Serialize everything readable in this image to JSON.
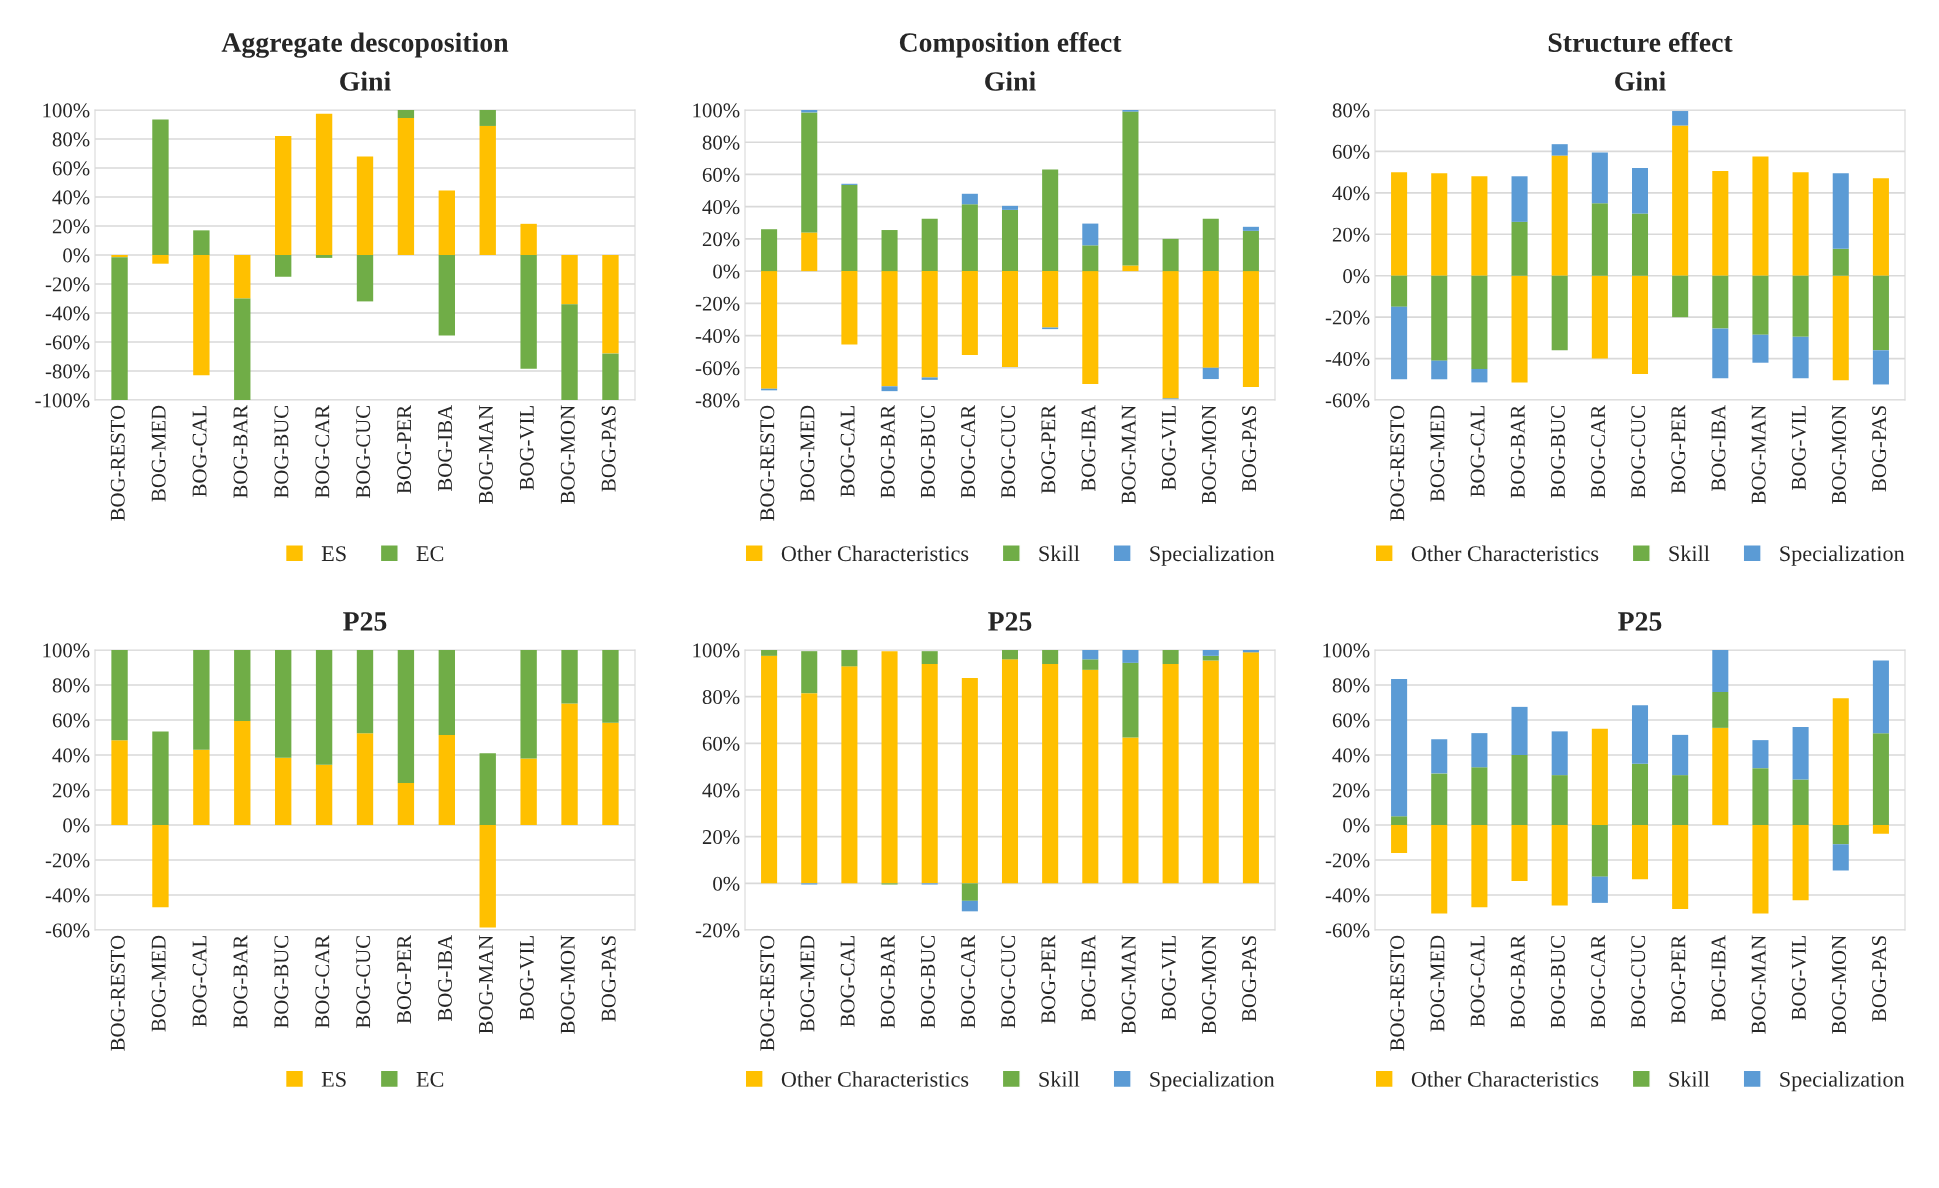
{
  "chart_data": [
    {
      "type": "bar",
      "title": "Aggregate descoposition",
      "subtitle": "Gini",
      "stacked": true,
      "grid": "y",
      "legend": "bottom",
      "categories": [
        "BOG-RESTO",
        "BOG-MED",
        "BOG-CAL",
        "BOG-BAR",
        "BOG-BUC",
        "BOG-CAR",
        "BOG-CUC",
        "BOG-PER",
        "BOG-IBA",
        "BOG-MAN",
        "BOG-VIL",
        "BOG-MON",
        "BOG-PAS"
      ],
      "ylim": [
        -100,
        100
      ],
      "yticks": [
        {
          "value": -100,
          "label": "-100%"
        },
        {
          "value": -80,
          "label": "-80%"
        },
        {
          "value": -60,
          "label": "-60%"
        },
        {
          "value": -40,
          "label": "-40%"
        },
        {
          "value": -20,
          "label": "-20%"
        },
        {
          "value": 0,
          "label": "0%"
        },
        {
          "value": 20,
          "label": "20%"
        },
        {
          "value": 40,
          "label": "40%"
        },
        {
          "value": 60,
          "label": "60%"
        },
        {
          "value": 80,
          "label": "80%"
        },
        {
          "value": 100,
          "label": "100%"
        }
      ],
      "series": [
        {
          "name": "ES",
          "color": "#ffc000",
          "values": [
            -1.5,
            -6,
            -83,
            -30,
            82,
            97.5,
            68,
            94.5,
            44.5,
            89,
            21.5,
            -34,
            -68
          ]
        },
        {
          "name": "EC",
          "color": "#70ad47",
          "values": [
            -98.5,
            93.5,
            17,
            -70,
            -15,
            -2,
            -32,
            5.5,
            -55.5,
            11,
            -78.5,
            -66,
            -32
          ]
        }
      ]
    },
    {
      "type": "bar",
      "title": "Composition effect",
      "subtitle": "Gini",
      "stacked": true,
      "grid": "y",
      "legend": "bottom",
      "categories": [
        "BOG-RESTO",
        "BOG-MED",
        "BOG-CAL",
        "BOG-BAR",
        "BOG-BUC",
        "BOG-CAR",
        "BOG-CUC",
        "BOG-PER",
        "BOG-IBA",
        "BOG-MAN",
        "BOG-VIL",
        "BOG-MON",
        "BOG-PAS"
      ],
      "ylim": [
        -80,
        100
      ],
      "yticks": [
        {
          "value": -80,
          "label": "-80%"
        },
        {
          "value": -60,
          "label": "-60%"
        },
        {
          "value": -40,
          "label": "-40%"
        },
        {
          "value": -20,
          "label": "-20%"
        },
        {
          "value": 0,
          "label": "0%"
        },
        {
          "value": 20,
          "label": "20%"
        },
        {
          "value": 40,
          "label": "40%"
        },
        {
          "value": 60,
          "label": "60%"
        },
        {
          "value": 80,
          "label": "80%"
        },
        {
          "value": 100,
          "label": "100%"
        }
      ],
      "series": [
        {
          "name": "Other Characteristics",
          "color": "#ffc000",
          "values": [
            -73,
            24,
            -45.5,
            -71.5,
            -66,
            -52,
            -59.5,
            -35,
            -70,
            3.5,
            -79,
            -60,
            -72
          ]
        },
        {
          "name": "Skill",
          "color": "#70ad47",
          "values": [
            26,
            74.5,
            53.5,
            25.5,
            32.5,
            41.5,
            38,
            63,
            16,
            95.5,
            20,
            32.5,
            25
          ]
        },
        {
          "name": "Specialization",
          "color": "#5b9bd5",
          "values": [
            -1,
            1.5,
            0.7,
            -3,
            -1.5,
            6.5,
            2.5,
            -1,
            13.5,
            1,
            -0.5,
            -7,
            2.5
          ]
        }
      ]
    },
    {
      "type": "bar",
      "title": "Structure effect",
      "subtitle": "Gini",
      "stacked": true,
      "grid": "y",
      "legend": "bottom",
      "categories": [
        "BOG-RESTO",
        "BOG-MED",
        "BOG-CAL",
        "BOG-BAR",
        "BOG-BUC",
        "BOG-CAR",
        "BOG-CUC",
        "BOG-PER",
        "BOG-IBA",
        "BOG-MAN",
        "BOG-VIL",
        "BOG-MON",
        "BOG-PAS"
      ],
      "ylim": [
        -60,
        80
      ],
      "yticks": [
        {
          "value": -60,
          "label": "-60%"
        },
        {
          "value": -40,
          "label": "-40%"
        },
        {
          "value": -20,
          "label": "-20%"
        },
        {
          "value": 0,
          "label": "0%"
        },
        {
          "value": 20,
          "label": "20%"
        },
        {
          "value": 40,
          "label": "40%"
        },
        {
          "value": 60,
          "label": "60%"
        },
        {
          "value": 80,
          "label": "80%"
        }
      ],
      "series": [
        {
          "name": "Other Characteristics",
          "color": "#ffc000",
          "values": [
            50,
            49.5,
            48,
            -51.5,
            58,
            -40,
            -47.5,
            72.5,
            50.5,
            57.5,
            50,
            -50.5,
            47
          ]
        },
        {
          "name": "Skill",
          "color": "#70ad47",
          "values": [
            -15,
            -41,
            -45,
            26,
            -36,
            35,
            30,
            -20,
            -25.5,
            -28.5,
            -29.5,
            13,
            -36
          ]
        },
        {
          "name": "Specialization",
          "color": "#5b9bd5",
          "values": [
            -35,
            -9,
            -6.5,
            22,
            5.5,
            24.5,
            22,
            7,
            -24,
            -13.5,
            -20,
            36.5,
            -16.5
          ]
        }
      ]
    },
    {
      "type": "bar",
      "title": "P25",
      "stacked": true,
      "grid": "y",
      "legend": "bottom",
      "categories": [
        "BOG-RESTO",
        "BOG-MED",
        "BOG-CAL",
        "BOG-BAR",
        "BOG-BUC",
        "BOG-CAR",
        "BOG-CUC",
        "BOG-PER",
        "BOG-IBA",
        "BOG-MAN",
        "BOG-VIL",
        "BOG-MON",
        "BOG-PAS"
      ],
      "ylim": [
        -60,
        100
      ],
      "yticks": [
        {
          "value": -60,
          "label": "-60%"
        },
        {
          "value": -40,
          "label": "-40%"
        },
        {
          "value": -20,
          "label": "-20%"
        },
        {
          "value": 0,
          "label": "0%"
        },
        {
          "value": 20,
          "label": "20%"
        },
        {
          "value": 40,
          "label": "40%"
        },
        {
          "value": 60,
          "label": "60%"
        },
        {
          "value": 80,
          "label": "80%"
        },
        {
          "value": 100,
          "label": "100%"
        }
      ],
      "series": [
        {
          "name": "ES",
          "color": "#ffc000",
          "values": [
            48.5,
            -47,
            43,
            59.5,
            38.5,
            34.5,
            52.5,
            24,
            51.5,
            -58.5,
            38,
            69.5,
            58.5
          ]
        },
        {
          "name": "EC",
          "color": "#70ad47",
          "values": [
            51.5,
            53.5,
            57,
            40.5,
            61.5,
            65.5,
            47.5,
            76,
            48.5,
            41,
            62,
            30.5,
            41.5
          ]
        }
      ]
    },
    {
      "type": "bar",
      "title": "P25",
      "stacked": true,
      "grid": "y",
      "legend": "bottom",
      "categories": [
        "BOG-RESTO",
        "BOG-MED",
        "BOG-CAL",
        "BOG-BAR",
        "BOG-BUC",
        "BOG-CAR",
        "BOG-CUC",
        "BOG-PER",
        "BOG-IBA",
        "BOG-MAN",
        "BOG-VIL",
        "BOG-MON",
        "BOG-PAS"
      ],
      "ylim": [
        -20,
        100
      ],
      "yticks": [
        {
          "value": -20,
          "label": "-20%"
        },
        {
          "value": 0,
          "label": "0%"
        },
        {
          "value": 20,
          "label": "20%"
        },
        {
          "value": 40,
          "label": "40%"
        },
        {
          "value": 60,
          "label": "60%"
        },
        {
          "value": 80,
          "label": "80%"
        },
        {
          "value": 100,
          "label": "100%"
        }
      ],
      "series": [
        {
          "name": "Other Characteristics",
          "color": "#ffc000",
          "values": [
            97.5,
            81.5,
            93,
            99.5,
            94,
            88,
            96,
            94,
            91.5,
            62.5,
            94,
            95.5,
            99
          ]
        },
        {
          "name": "Skill",
          "color": "#70ad47",
          "values": [
            2.5,
            18,
            7,
            -0.5,
            5.5,
            -7.5,
            4,
            6,
            4.5,
            32,
            6,
            2,
            null
          ]
        },
        {
          "name": "Specialization",
          "color": "#5b9bd5",
          "values": [
            null,
            -0.5,
            null,
            null,
            -0.5,
            -4.5,
            null,
            null,
            4,
            5.5,
            null,
            2.5,
            1
          ]
        }
      ]
    },
    {
      "type": "bar",
      "title": "P25",
      "stacked": true,
      "grid": "y",
      "legend": "bottom",
      "categories": [
        "BOG-RESTO",
        "BOG-MED",
        "BOG-CAL",
        "BOG-BAR",
        "BOG-BUC",
        "BOG-CAR",
        "BOG-CUC",
        "BOG-PER",
        "BOG-IBA",
        "BOG-MAN",
        "BOG-VIL",
        "BOG-MON",
        "BOG-PAS"
      ],
      "ylim": [
        -60,
        100
      ],
      "yticks": [
        {
          "value": -60,
          "label": "-60%"
        },
        {
          "value": -40,
          "label": "-40%"
        },
        {
          "value": -20,
          "label": "-20%"
        },
        {
          "value": 0,
          "label": "0%"
        },
        {
          "value": 20,
          "label": "20%"
        },
        {
          "value": 40,
          "label": "40%"
        },
        {
          "value": 60,
          "label": "60%"
        },
        {
          "value": 80,
          "label": "80%"
        },
        {
          "value": 100,
          "label": "100%"
        }
      ],
      "series": [
        {
          "name": "Other Characteristics",
          "color": "#ffc000",
          "values": [
            -16,
            -50.5,
            -47,
            -32,
            -46,
            55,
            -31,
            -48,
            55.5,
            -50.5,
            -43,
            72.5,
            -5
          ]
        },
        {
          "name": "Skill",
          "color": "#70ad47",
          "values": [
            5,
            29.5,
            33,
            40,
            28.5,
            -29.5,
            35,
            28.5,
            20.5,
            32.5,
            26,
            -11,
            52.5
          ]
        },
        {
          "name": "Specialization",
          "color": "#5b9bd5",
          "values": [
            78.5,
            19.5,
            19.5,
            27.5,
            25,
            -15,
            33.5,
            23,
            24,
            16,
            30,
            -15,
            41.5
          ]
        }
      ]
    }
  ]
}
